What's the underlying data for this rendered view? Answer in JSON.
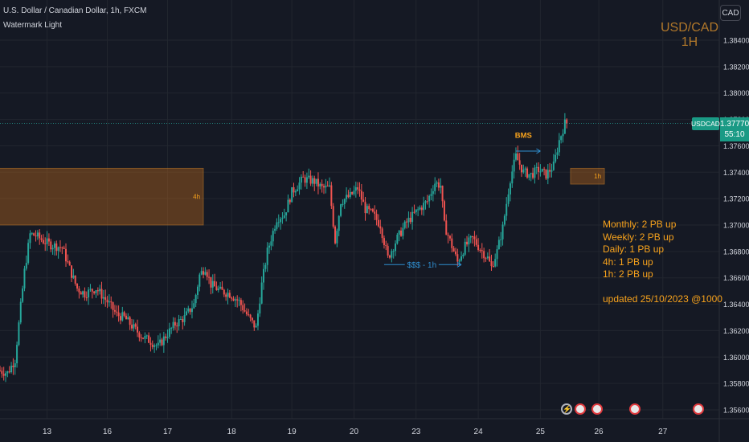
{
  "header": {
    "title": "U.S. Dollar / Canadian Dollar, 1h, FXCM",
    "subtitle": "Watermark Light"
  },
  "currency_button": "CAD",
  "watermark": {
    "line1": "USD/CAD",
    "line2": "1H"
  },
  "last_price": {
    "symbol": "USDCAD",
    "price": "1.37770",
    "countdown": "55:10"
  },
  "zones": [
    {
      "label": "4h",
      "x_start": -2,
      "x_end": 108,
      "price_high": 1.3743,
      "price_low": 1.37
    },
    {
      "label": "1h",
      "x_start": 303,
      "x_end": 321,
      "price_high": 1.3743,
      "price_low": 1.3731
    }
  ],
  "annotations": {
    "bms": "BMS",
    "liquidity": "$$$ - 1h"
  },
  "notes": {
    "lines": [
      "Monthly: 2 PB up",
      "Weekly: 2 PB up",
      "Daily: 1 PB up",
      "4h: 1 PB up",
      "1h: 2 PB up"
    ],
    "updated": "updated 25/10/2023 @1000"
  },
  "event_icons": [
    {
      "name": "lightning-icon",
      "x": 301,
      "color": "#b2b5be"
    },
    {
      "name": "flag-ca-icon",
      "x": 308,
      "color": "#e03a3e"
    },
    {
      "name": "flag-us-icon",
      "x": 317,
      "color": "#e03a3e"
    },
    {
      "name": "flag-us-icon",
      "x": 337,
      "color": "#e03a3e"
    },
    {
      "name": "flag-us-icon",
      "x": 371,
      "color": "#e03a3e"
    }
  ],
  "chart_data": {
    "type": "candlestick",
    "title": "U.S. Dollar / Canadian Dollar, 1h, FXCM",
    "y_ticks": [
      1.384,
      1.382,
      1.38,
      1.378,
      1.376,
      1.374,
      1.372,
      1.37,
      1.368,
      1.366,
      1.364,
      1.362,
      1.36,
      1.358,
      1.356
    ],
    "ylim": [
      1.3553,
      1.3867
    ],
    "x_ticks": [
      {
        "label": "13",
        "x": 25
      },
      {
        "label": "16",
        "x": 57
      },
      {
        "label": "17",
        "x": 89
      },
      {
        "label": "18",
        "x": 123
      },
      {
        "label": "19",
        "x": 155
      },
      {
        "label": "20",
        "x": 188
      },
      {
        "label": "23",
        "x": 221
      },
      {
        "label": "24",
        "x": 254
      },
      {
        "label": "25",
        "x": 287
      },
      {
        "label": "26",
        "x": 318
      },
      {
        "label": "27",
        "x": 352
      }
    ],
    "xlim": [
      0,
      382
    ],
    "colors": {
      "up": "#26a69a",
      "down": "#ef5350"
    },
    "path": [
      [
        0,
        1.359
      ],
      [
        5,
        1.3588
      ],
      [
        9,
        1.3598
      ],
      [
        11,
        1.3625
      ],
      [
        14,
        1.3665
      ],
      [
        17,
        1.3693
      ],
      [
        20,
        1.3692
      ],
      [
        24,
        1.3688
      ],
      [
        28,
        1.3685
      ],
      [
        34,
        1.3683
      ],
      [
        39,
        1.3663
      ],
      [
        42,
        1.3652
      ],
      [
        46,
        1.3648
      ],
      [
        52,
        1.3652
      ],
      [
        58,
        1.3642
      ],
      [
        63,
        1.3632
      ],
      [
        67,
        1.363
      ],
      [
        72,
        1.3622
      ],
      [
        77,
        1.3615
      ],
      [
        81,
        1.3612
      ],
      [
        85,
        1.3608
      ],
      [
        89,
        1.3616
      ],
      [
        94,
        1.3625
      ],
      [
        99,
        1.363
      ],
      [
        104,
        1.364
      ],
      [
        107,
        1.3662
      ],
      [
        110,
        1.3668
      ],
      [
        113,
        1.3655
      ],
      [
        118,
        1.365
      ],
      [
        123,
        1.3648
      ],
      [
        128,
        1.3642
      ],
      [
        133,
        1.363
      ],
      [
        137,
        1.3622
      ],
      [
        140,
        1.3655
      ],
      [
        143,
        1.368
      ],
      [
        148,
        1.3705
      ],
      [
        152,
        1.3708
      ],
      [
        156,
        1.3725
      ],
      [
        162,
        1.3735
      ],
      [
        168,
        1.3733
      ],
      [
        172,
        1.3728
      ],
      [
        176,
        1.3728
      ],
      [
        179,
        1.3688
      ],
      [
        182,
        1.3718
      ],
      [
        187,
        1.3722
      ],
      [
        191,
        1.3728
      ],
      [
        195,
        1.3712
      ],
      [
        199,
        1.3708
      ],
      [
        203,
        1.37
      ],
      [
        207,
        1.3675
      ],
      [
        212,
        1.369
      ],
      [
        217,
        1.3702
      ],
      [
        222,
        1.371
      ],
      [
        228,
        1.3718
      ],
      [
        232,
        1.3732
      ],
      [
        235,
        1.373
      ],
      [
        237,
        1.37
      ],
      [
        240,
        1.3688
      ],
      [
        244,
        1.3672
      ],
      [
        248,
        1.3684
      ],
      [
        252,
        1.369
      ],
      [
        256,
        1.3682
      ],
      [
        260,
        1.3675
      ],
      [
        262,
        1.3668
      ],
      [
        265,
        1.368
      ],
      [
        268,
        1.3698
      ],
      [
        272,
        1.3735
      ],
      [
        275,
        1.3752
      ],
      [
        279,
        1.374
      ],
      [
        283,
        1.3738
      ],
      [
        287,
        1.3742
      ],
      [
        291,
        1.3738
      ],
      [
        295,
        1.3745
      ],
      [
        298,
        1.3764
      ],
      [
        301,
        1.3777
      ]
    ]
  }
}
